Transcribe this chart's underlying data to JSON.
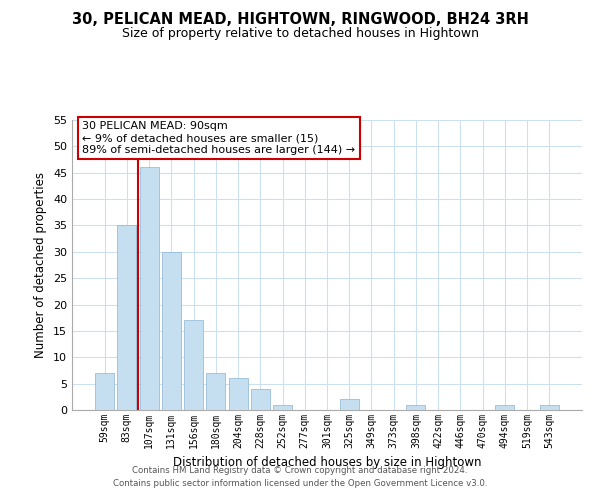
{
  "title": "30, PELICAN MEAD, HIGHTOWN, RINGWOOD, BH24 3RH",
  "subtitle": "Size of property relative to detached houses in Hightown",
  "xlabel": "Distribution of detached houses by size in Hightown",
  "ylabel": "Number of detached properties",
  "bar_labels": [
    "59sqm",
    "83sqm",
    "107sqm",
    "131sqm",
    "156sqm",
    "180sqm",
    "204sqm",
    "228sqm",
    "252sqm",
    "277sqm",
    "301sqm",
    "325sqm",
    "349sqm",
    "373sqm",
    "398sqm",
    "422sqm",
    "446sqm",
    "470sqm",
    "494sqm",
    "519sqm",
    "543sqm"
  ],
  "bar_values": [
    7,
    35,
    46,
    30,
    17,
    7,
    6,
    4,
    1,
    0,
    0,
    2,
    0,
    0,
    1,
    0,
    0,
    0,
    1,
    0,
    1
  ],
  "bar_color": "#c5dff0",
  "bar_edge_color": "#8ab4d4",
  "vline_x_index": 1,
  "vline_color": "#cc0000",
  "ylim": [
    0,
    55
  ],
  "yticks": [
    0,
    5,
    10,
    15,
    20,
    25,
    30,
    35,
    40,
    45,
    50,
    55
  ],
  "annotation_title": "30 PELICAN MEAD: 90sqm",
  "annotation_line1": "← 9% of detached houses are smaller (15)",
  "annotation_line2": "89% of semi-detached houses are larger (144) →",
  "annotation_box_color": "#ffffff",
  "annotation_box_edge": "#cc0000",
  "footer1": "Contains HM Land Registry data © Crown copyright and database right 2024.",
  "footer2": "Contains public sector information licensed under the Open Government Licence v3.0.",
  "background_color": "#ffffff",
  "grid_color": "#cce0f0"
}
